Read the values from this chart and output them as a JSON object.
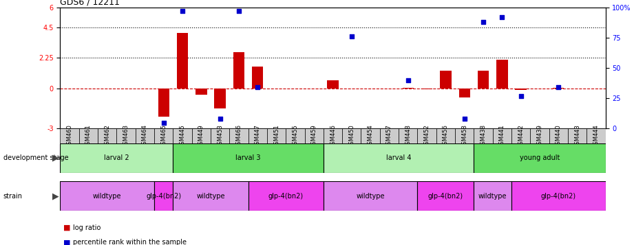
{
  "title": "GDS6 / 12211",
  "samples": [
    "GSM460",
    "GSM461",
    "GSM462",
    "GSM463",
    "GSM464",
    "GSM465",
    "GSM445",
    "GSM449",
    "GSM453",
    "GSM466",
    "GSM447",
    "GSM451",
    "GSM455",
    "GSM459",
    "GSM446",
    "GSM450",
    "GSM454",
    "GSM457",
    "GSM448",
    "GSM452",
    "GSM456",
    "GSM458",
    "GSM438",
    "GSM441",
    "GSM442",
    "GSM439",
    "GSM440",
    "GSM443",
    "GSM444"
  ],
  "log_ratio": [
    0,
    0,
    0,
    0,
    0,
    -2.1,
    4.1,
    -0.5,
    -1.5,
    2.7,
    1.6,
    0,
    0,
    0,
    0.6,
    0,
    0,
    0,
    0.05,
    -0.05,
    1.3,
    -0.7,
    1.3,
    2.1,
    -0.15,
    0,
    0.05,
    0,
    0
  ],
  "percentile": [
    null,
    null,
    null,
    null,
    null,
    5,
    97,
    null,
    8,
    97,
    34,
    null,
    null,
    null,
    null,
    76,
    null,
    null,
    40,
    null,
    null,
    8,
    88,
    92,
    27,
    null,
    34,
    null,
    null
  ],
  "ylim_left": [
    -3,
    6
  ],
  "ylim_right": [
    0,
    100
  ],
  "yticks_left": [
    -3,
    0,
    2.25,
    4.5,
    6
  ],
  "ytick_labels_left": [
    "-3",
    "0",
    "2.25",
    "4.5",
    "6"
  ],
  "yticks_right": [
    0,
    25,
    50,
    75,
    100
  ],
  "ytick_labels_right": [
    "0",
    "25",
    "50",
    "75",
    "100%"
  ],
  "development_stages": [
    {
      "label": "larval 2",
      "start": 0,
      "end": 6,
      "color": "#b2f0b2"
    },
    {
      "label": "larval 3",
      "start": 6,
      "end": 14,
      "color": "#66dd66"
    },
    {
      "label": "larval 4",
      "start": 14,
      "end": 22,
      "color": "#b2f0b2"
    },
    {
      "label": "young adult",
      "start": 22,
      "end": 29,
      "color": "#66dd66"
    }
  ],
  "strains": [
    {
      "label": "wildtype",
      "start": 0,
      "end": 5,
      "color": "#dd88ee"
    },
    {
      "label": "glp-4(bn2)",
      "start": 5,
      "end": 6,
      "color": "#ee44ee"
    },
    {
      "label": "wildtype",
      "start": 6,
      "end": 10,
      "color": "#dd88ee"
    },
    {
      "label": "glp-4(bn2)",
      "start": 10,
      "end": 14,
      "color": "#ee44ee"
    },
    {
      "label": "wildtype",
      "start": 14,
      "end": 19,
      "color": "#dd88ee"
    },
    {
      "label": "glp-4(bn2)",
      "start": 19,
      "end": 22,
      "color": "#ee44ee"
    },
    {
      "label": "wildtype",
      "start": 22,
      "end": 24,
      "color": "#dd88ee"
    },
    {
      "label": "glp-4(bn2)",
      "start": 24,
      "end": 29,
      "color": "#ee44ee"
    }
  ],
  "bar_color": "#cc0000",
  "dot_color": "#0000cc",
  "bar_width": 0.6,
  "dot_size": 18,
  "background_color": "#ffffff",
  "zero_line_color": "#cc0000",
  "label_fontsize": 7,
  "tick_fontsize": 7,
  "sample_fontsize": 6
}
